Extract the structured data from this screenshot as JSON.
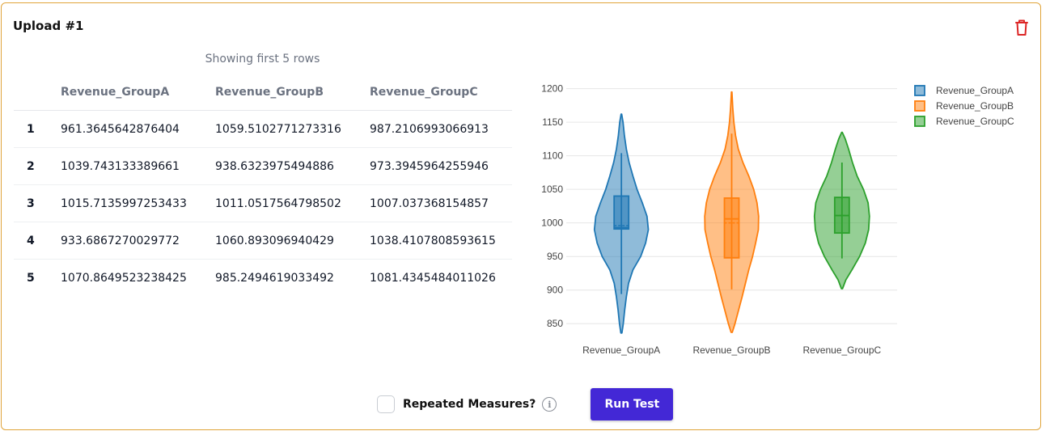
{
  "upload": {
    "title": "Upload #1",
    "caption": "Showing first 5 rows"
  },
  "table": {
    "headers": [
      "",
      "Revenue_GroupA",
      "Revenue_GroupB",
      "Revenue_GroupC"
    ],
    "rows": [
      [
        "1",
        "961.3645642876404",
        "1059.5102771273316",
        "987.2106993066913"
      ],
      [
        "2",
        "1039.743133389661",
        "938.6323975494886",
        "973.3945964255946"
      ],
      [
        "3",
        "1015.7135997253433",
        "1011.0517564798502",
        "1007.037368154857"
      ],
      [
        "4",
        "933.6867270029772",
        "1060.893096940429",
        "1038.4107808593615"
      ],
      [
        "5",
        "1070.8649523238425",
        "985.2494619033492",
        "1081.4345484011026"
      ]
    ]
  },
  "chart_data": {
    "type": "violin",
    "categories": [
      "Revenue_GroupA",
      "Revenue_GroupB",
      "Revenue_GroupC"
    ],
    "yticks": [
      850,
      900,
      950,
      1000,
      1050,
      1100,
      1150,
      1200
    ],
    "ylim": [
      837,
      1208
    ],
    "grid": true,
    "legend_position": "top-right",
    "series": [
      {
        "name": "Revenue_GroupA",
        "color": "#1f77b4",
        "violin_min": 836,
        "violin_max": 1162,
        "q1": 991,
        "median": 993,
        "q3": 1040,
        "mean": 996,
        "whisker_low": 894,
        "whisker_high": 1104,
        "density": [
          [
            836,
            0.02
          ],
          [
            850,
            0.07
          ],
          [
            870,
            0.12
          ],
          [
            890,
            0.18
          ],
          [
            910,
            0.26
          ],
          [
            930,
            0.42
          ],
          [
            950,
            0.7
          ],
          [
            970,
            0.88
          ],
          [
            990,
            0.98
          ],
          [
            1010,
            0.93
          ],
          [
            1030,
            0.76
          ],
          [
            1050,
            0.57
          ],
          [
            1070,
            0.42
          ],
          [
            1090,
            0.28
          ],
          [
            1110,
            0.18
          ],
          [
            1130,
            0.11
          ],
          [
            1150,
            0.06
          ],
          [
            1162,
            0.01
          ]
        ]
      },
      {
        "name": "Revenue_GroupB",
        "color": "#ff7f0e",
        "violin_min": 837,
        "violin_max": 1195,
        "q1": 948,
        "median": 1006,
        "q3": 1037,
        "mean": 1000,
        "whisker_low": 901,
        "whisker_high": 1133,
        "density": [
          [
            837,
            0.02
          ],
          [
            850,
            0.12
          ],
          [
            870,
            0.25
          ],
          [
            890,
            0.38
          ],
          [
            910,
            0.5
          ],
          [
            930,
            0.62
          ],
          [
            950,
            0.76
          ],
          [
            970,
            0.87
          ],
          [
            990,
            0.97
          ],
          [
            1010,
            0.98
          ],
          [
            1030,
            0.92
          ],
          [
            1050,
            0.8
          ],
          [
            1070,
            0.62
          ],
          [
            1090,
            0.41
          ],
          [
            1110,
            0.24
          ],
          [
            1130,
            0.14
          ],
          [
            1150,
            0.08
          ],
          [
            1170,
            0.04
          ],
          [
            1195,
            0.01
          ]
        ]
      },
      {
        "name": "Revenue_GroupC",
        "color": "#2ca02c",
        "violin_min": 902,
        "violin_max": 1135,
        "q1": 985,
        "median": 1011,
        "q3": 1038,
        "mean": 1011,
        "whisker_low": 947,
        "whisker_high": 1090,
        "density": [
          [
            902,
            0.02
          ],
          [
            915,
            0.14
          ],
          [
            930,
            0.36
          ],
          [
            950,
            0.64
          ],
          [
            970,
            0.85
          ],
          [
            990,
            0.97
          ],
          [
            1010,
            1.0
          ],
          [
            1030,
            0.95
          ],
          [
            1050,
            0.78
          ],
          [
            1070,
            0.55
          ],
          [
            1090,
            0.38
          ],
          [
            1110,
            0.24
          ],
          [
            1125,
            0.12
          ],
          [
            1135,
            0.01
          ]
        ]
      }
    ]
  },
  "controls": {
    "repeated_measures_label": "Repeated Measures?",
    "repeated_measures_checked": false,
    "info_glyph": "i",
    "run_test_label": "Run Test",
    "accent_color": "#4328d6"
  },
  "icons": {
    "delete": "trash-icon",
    "info": "info-icon"
  }
}
